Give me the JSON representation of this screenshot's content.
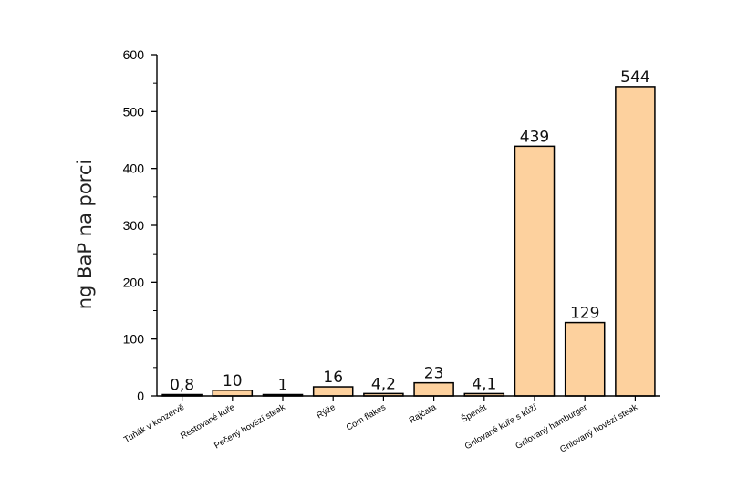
{
  "chart_data": {
    "type": "bar",
    "title": "",
    "xlabel": "",
    "ylabel": "ng BaP na porci",
    "ylim": [
      0,
      600
    ],
    "yticks": [
      0,
      100,
      200,
      300,
      400,
      500,
      600
    ],
    "categories": [
      "Tuňák v konzervě",
      "Restované kuře",
      "Pečený hovězí steak",
      "Rýže",
      "Corn flakes",
      "Rajčata",
      "Špenát",
      "Grilované kuře s kůží",
      "Grilovaný hamburger",
      "Grilovaný hovězí steak"
    ],
    "values": [
      0.8,
      10,
      1,
      16,
      4.2,
      23,
      4.1,
      439,
      129,
      544
    ],
    "data_labels": [
      "0,8",
      "10",
      "1",
      "16",
      "4,2",
      "23",
      "4,1",
      "439",
      "129",
      "544"
    ],
    "grid": false,
    "legend": "none",
    "bar_color": "#fdd19e",
    "bar_edge_color": "#000000"
  }
}
